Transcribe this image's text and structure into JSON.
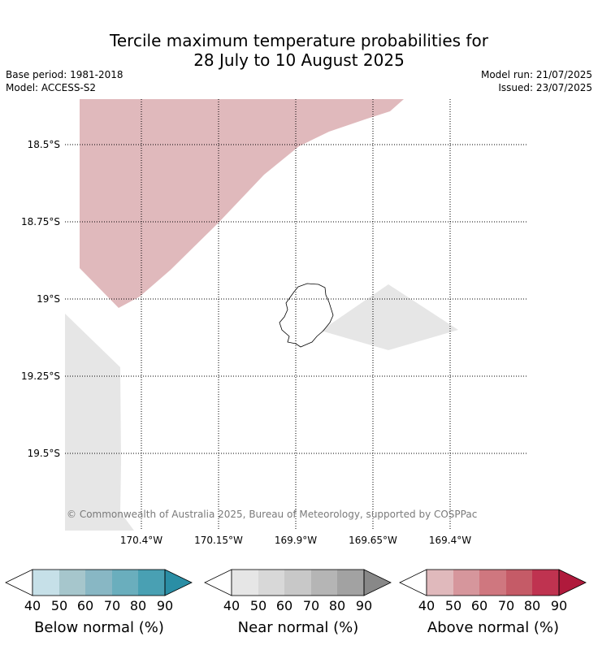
{
  "title_line1": "Tercile maximum temperature probabilities for",
  "title_line2": "28 July to 10 August 2025",
  "base_period": "Base period: 1981-2018",
  "model": "Model: ACCESS-S2",
  "model_run": "Model run: 21/07/2025",
  "issued": "Issued: 23/07/2025",
  "lat_labels": [
    "18.5°S",
    "18.75°S",
    "19°S",
    "19.25°S",
    "19.5°S"
  ],
  "lon_labels": [
    "170.4°W",
    "170.15°W",
    "169.9°W",
    "169.65°W",
    "169.4°W"
  ],
  "credit": "© Commonwealth of Australia 2025, Bureau of Meteorology, supported by COSPPac",
  "colorbars": {
    "below": {
      "label": "Below normal (%)",
      "colors": [
        "#c6e0e8",
        "#a6c6cc",
        "#88b7c4",
        "#6aaebd",
        "#49a0b3",
        "#2a8ea5"
      ]
    },
    "near": {
      "label": "Near normal (%)",
      "colors": [
        "#e6e6e6",
        "#d8d8d8",
        "#c8c8c8",
        "#b5b5b5",
        "#a2a2a2",
        "#888888"
      ]
    },
    "above": {
      "label": "Above normal (%)",
      "colors": [
        "#e0b9bc",
        "#d6969c",
        "#cf777f",
        "#c55b67",
        "#bf3350",
        "#b01a3c"
      ]
    },
    "ticks": [
      "40",
      "50",
      "60",
      "70",
      "80",
      "90"
    ]
  },
  "map_colors": {
    "above_40_50": "#e0b9bc",
    "near_40_50": "#e6e6e6"
  }
}
